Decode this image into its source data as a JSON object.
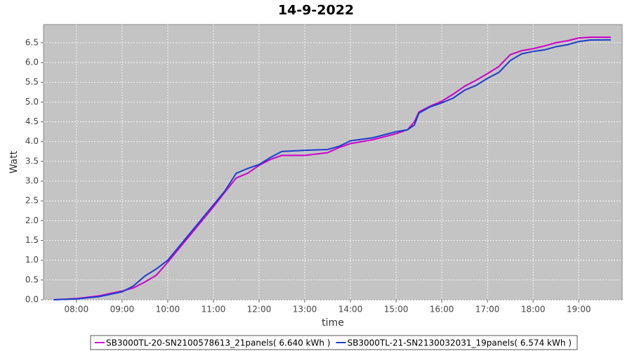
{
  "chart_data": {
    "type": "line",
    "title": "14-9-2022",
    "x_label": "time",
    "y_label": "Watt",
    "xlim": [
      7.28,
      19.95
    ],
    "ylim": [
      0,
      6.96
    ],
    "xticks": [
      {
        "value": 8,
        "label": "08:00"
      },
      {
        "value": 9,
        "label": "09:00"
      },
      {
        "value": 10,
        "label": "10:00"
      },
      {
        "value": 11,
        "label": "11:00"
      },
      {
        "value": 12,
        "label": "12:00"
      },
      {
        "value": 13,
        "label": "13:00"
      },
      {
        "value": 14,
        "label": "14:00"
      },
      {
        "value": 15,
        "label": "15:00"
      },
      {
        "value": 16,
        "label": "16:00"
      },
      {
        "value": 17,
        "label": "17:00"
      },
      {
        "value": 18,
        "label": "18:00"
      },
      {
        "value": 19,
        "label": "19:00"
      }
    ],
    "yticks": [
      {
        "value": 0,
        "label": "0.0"
      },
      0.5,
      {
        "value": 1,
        "label": "1.0"
      },
      1.5,
      {
        "value": 2,
        "label": "2.0"
      },
      2.5,
      {
        "value": 3,
        "label": "3.0"
      },
      3.5,
      {
        "value": 4,
        "label": "4.0"
      },
      4.5,
      {
        "value": 5,
        "label": "5.0"
      },
      5.5,
      {
        "value": 6,
        "label": "6.0"
      },
      6.5
    ],
    "grid": true,
    "legend": "bottom",
    "x": [
      7.5,
      8,
      8.5,
      9,
      9.25,
      9.5,
      9.75,
      10,
      10.25,
      10.5,
      10.75,
      11,
      11.25,
      11.5,
      11.75,
      12,
      12.25,
      12.5,
      13,
      13.5,
      13.75,
      14,
      14.5,
      15,
      15.25,
      15.4,
      15.5,
      15.75,
      16,
      16.25,
      16.5,
      16.75,
      17,
      17.25,
      17.5,
      17.75,
      18,
      18.25,
      18.5,
      18.75,
      19,
      19.25,
      19.7
    ],
    "series": [
      {
        "name": "SB3000TL-20-SN2100578613_21panels( 6.640 kWh )",
        "color": "#cc00cc",
        "values": [
          0,
          0.03,
          0.1,
          0.22,
          0.3,
          0.45,
          0.62,
          0.95,
          1.3,
          1.65,
          2.0,
          2.35,
          2.72,
          3.08,
          3.2,
          3.4,
          3.55,
          3.65,
          3.65,
          3.72,
          3.85,
          3.95,
          4.05,
          4.2,
          4.3,
          4.5,
          4.75,
          4.9,
          5.02,
          5.2,
          5.4,
          5.55,
          5.72,
          5.9,
          6.2,
          6.3,
          6.35,
          6.42,
          6.5,
          6.55,
          6.62,
          6.64,
          6.64
        ]
      },
      {
        "name": "SB3000TL-21-SN2130032031_19panels( 6.574 kWh )",
        "color": "#1a3fcc",
        "values": [
          0,
          0.02,
          0.08,
          0.2,
          0.35,
          0.6,
          0.78,
          1.0,
          1.35,
          1.7,
          2.05,
          2.4,
          2.75,
          3.2,
          3.32,
          3.42,
          3.6,
          3.75,
          3.78,
          3.8,
          3.88,
          4.02,
          4.1,
          4.25,
          4.3,
          4.42,
          4.72,
          4.88,
          4.98,
          5.1,
          5.3,
          5.42,
          5.6,
          5.75,
          6.05,
          6.22,
          6.28,
          6.32,
          6.4,
          6.45,
          6.53,
          6.57,
          6.574
        ]
      }
    ]
  }
}
